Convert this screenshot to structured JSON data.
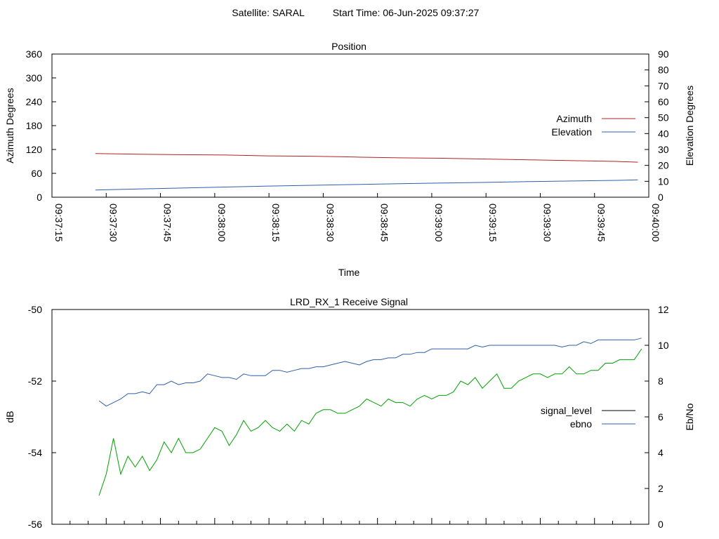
{
  "header": {
    "satellite": "Satellite: SARAL",
    "start_time": "Start Time: 06-Jun-2025 09:37:27"
  },
  "colors": {
    "azimuth": "#b22222",
    "elevation": "#2d5fa8",
    "signal_level": "#000000",
    "signal_level_drawn": "#00a000",
    "ebno": "#2d5fa8"
  },
  "chart_data": [
    {
      "type": "line",
      "title": "Position",
      "xlabel": "Time",
      "ylabel": "Azimuth Degrees",
      "y2label": "Elevation Degrees",
      "x_ticks": [
        "09:37:15",
        "09:37:30",
        "09:37:45",
        "09:38:00",
        "09:38:15",
        "09:38:30",
        "09:38:45",
        "09:39:00",
        "09:39:15",
        "09:39:30",
        "09:39:45",
        "09:40:00"
      ],
      "y_ticks": [
        "0",
        "60",
        "120",
        "180",
        "240",
        "300",
        "360"
      ],
      "y2_ticks": [
        "0",
        "10",
        "20",
        "30",
        "40",
        "50",
        "60",
        "70",
        "80",
        "90"
      ],
      "xlim_seconds": [
        915,
        1080
      ],
      "ylim": [
        0,
        360
      ],
      "y2lim": [
        0,
        90
      ],
      "legend_position": "right",
      "series": [
        {
          "name": "Azimuth",
          "axis": "y",
          "x_seconds": [
            927,
            939,
            951,
            963,
            975,
            987,
            999,
            1011,
            1023,
            1035,
            1047,
            1059,
            1071,
            1077
          ],
          "values": [
            110,
            108,
            107,
            106,
            104,
            103,
            101,
            99,
            98,
            96,
            94,
            92,
            90,
            88
          ]
        },
        {
          "name": "Elevation",
          "axis": "y2",
          "x_seconds": [
            927,
            939,
            951,
            963,
            975,
            987,
            999,
            1011,
            1023,
            1035,
            1047,
            1059,
            1071,
            1077
          ],
          "values": [
            4.5,
            5.2,
            5.8,
            6.4,
            7.0,
            7.5,
            8.0,
            8.5,
            8.9,
            9.3,
            9.8,
            10.2,
            10.6,
            10.9
          ]
        }
      ]
    },
    {
      "type": "line",
      "title": "LRD_RX_1 Receive Signal",
      "ylabel": "dB",
      "y2label": "Eb/No",
      "y_ticks": [
        "-50",
        "-52",
        "-54",
        "-56"
      ],
      "y2_ticks": [
        "0",
        "2",
        "4",
        "6",
        "8",
        "10",
        "12"
      ],
      "ylim": [
        -56,
        -50
      ],
      "y2lim": [
        0,
        12
      ],
      "xlim_seconds": [
        915,
        1080
      ],
      "legend_position": "right",
      "series": [
        {
          "name": "signal_level",
          "axis": "y",
          "x_seconds": [
            928,
            930,
            932,
            934,
            936,
            938,
            940,
            942,
            944,
            946,
            948,
            950,
            952,
            954,
            956,
            958,
            960,
            962,
            964,
            966,
            968,
            970,
            972,
            974,
            976,
            978,
            980,
            982,
            984,
            986,
            988,
            990,
            992,
            994,
            996,
            998,
            1000,
            1002,
            1004,
            1006,
            1008,
            1010,
            1012,
            1014,
            1016,
            1018,
            1020,
            1022,
            1024,
            1026,
            1028,
            1030,
            1032,
            1034,
            1036,
            1038,
            1040,
            1042,
            1044,
            1046,
            1048,
            1050,
            1052,
            1054,
            1056,
            1058,
            1060,
            1062,
            1064,
            1066,
            1068,
            1070,
            1072,
            1074,
            1076,
            1078
          ],
          "values": [
            -55.2,
            -54.6,
            -53.6,
            -54.6,
            -54.1,
            -54.4,
            -54.1,
            -54.5,
            -54.2,
            -53.7,
            -54.0,
            -53.6,
            -54.0,
            -54.0,
            -53.9,
            -53.6,
            -53.3,
            -53.4,
            -53.8,
            -53.5,
            -53.1,
            -53.4,
            -53.3,
            -53.1,
            -53.3,
            -53.4,
            -53.2,
            -53.4,
            -53.1,
            -53.2,
            -52.9,
            -52.8,
            -52.8,
            -52.9,
            -52.9,
            -52.8,
            -52.7,
            -52.5,
            -52.6,
            -52.7,
            -52.5,
            -52.6,
            -52.6,
            -52.7,
            -52.5,
            -52.4,
            -52.5,
            -52.4,
            -52.4,
            -52.3,
            -52.0,
            -52.1,
            -51.9,
            -52.2,
            -52.0,
            -51.8,
            -52.2,
            -52.2,
            -52.0,
            -51.9,
            -51.8,
            -51.8,
            -51.9,
            -51.8,
            -51.8,
            -51.6,
            -51.8,
            -51.8,
            -51.7,
            -51.7,
            -51.5,
            -51.5,
            -51.4,
            -51.4,
            -51.4,
            -51.1
          ]
        },
        {
          "name": "ebno",
          "axis": "y2",
          "x_seconds": [
            928,
            930,
            932,
            934,
            936,
            938,
            940,
            942,
            944,
            946,
            948,
            950,
            952,
            954,
            956,
            958,
            960,
            962,
            964,
            966,
            968,
            970,
            972,
            974,
            976,
            978,
            980,
            982,
            984,
            986,
            988,
            990,
            992,
            994,
            996,
            998,
            1000,
            1002,
            1004,
            1006,
            1008,
            1010,
            1012,
            1014,
            1016,
            1018,
            1020,
            1022,
            1024,
            1026,
            1028,
            1030,
            1032,
            1034,
            1036,
            1038,
            1040,
            1042,
            1044,
            1046,
            1048,
            1050,
            1052,
            1054,
            1056,
            1058,
            1060,
            1062,
            1064,
            1066,
            1068,
            1070,
            1072,
            1074,
            1076,
            1078
          ],
          "values": [
            6.9,
            6.6,
            6.8,
            7.0,
            7.3,
            7.3,
            7.4,
            7.3,
            7.8,
            7.8,
            8.0,
            7.8,
            7.9,
            7.9,
            8.0,
            8.4,
            8.3,
            8.2,
            8.2,
            8.1,
            8.4,
            8.3,
            8.3,
            8.3,
            8.6,
            8.6,
            8.5,
            8.6,
            8.7,
            8.7,
            8.8,
            8.8,
            8.9,
            9.0,
            9.1,
            9.0,
            8.9,
            9.1,
            9.2,
            9.2,
            9.3,
            9.3,
            9.5,
            9.5,
            9.6,
            9.6,
            9.8,
            9.8,
            9.8,
            9.8,
            9.8,
            9.8,
            10.0,
            9.9,
            10.0,
            10.0,
            10.0,
            10.0,
            10.0,
            10.0,
            10.0,
            10.0,
            10.0,
            10.0,
            9.9,
            10.0,
            10.0,
            10.2,
            10.1,
            10.3,
            10.3,
            10.3,
            10.3,
            10.3,
            10.3,
            10.4
          ]
        }
      ]
    }
  ]
}
